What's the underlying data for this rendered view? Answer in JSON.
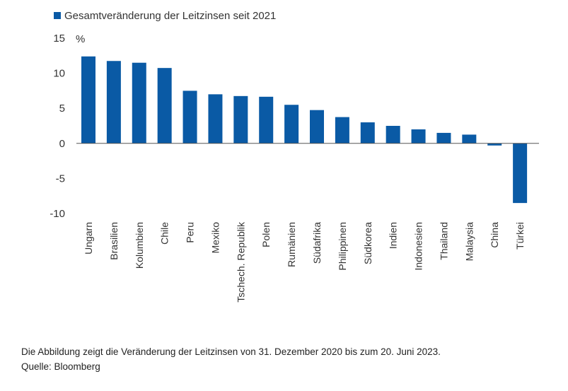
{
  "chart_data": {
    "type": "bar",
    "legend": "Gesamtveränderung der Leitzinsen seit 2021",
    "unit_label": "%",
    "categories": [
      "Ungarn",
      "Brasilien",
      "Kolumbien",
      "Chile",
      "Peru",
      "Mexiko",
      "Tschech. Republik",
      "Polen",
      "Rumänien",
      "Südafrika",
      "Philippinen",
      "Südkorea",
      "Indien",
      "Indonesien",
      "Thailand",
      "Malaysia",
      "China",
      "Türkei"
    ],
    "values": [
      12.4,
      11.75,
      11.5,
      10.75,
      7.5,
      7.0,
      6.75,
      6.65,
      5.5,
      4.75,
      3.75,
      3.0,
      2.5,
      2.0,
      1.5,
      1.25,
      -0.3,
      -8.5
    ],
    "yticks": [
      15,
      10,
      5,
      0,
      -5,
      -10
    ],
    "ylim": [
      -10,
      15
    ],
    "bar_color": "#0a5aa5",
    "grid": false
  },
  "caption": {
    "note": "Die Abbildung zeigt die Veränderung der Leitzinsen von 31. Dezember 2020 bis zum 20. Juni 2023.",
    "source": "Quelle: Bloomberg"
  }
}
